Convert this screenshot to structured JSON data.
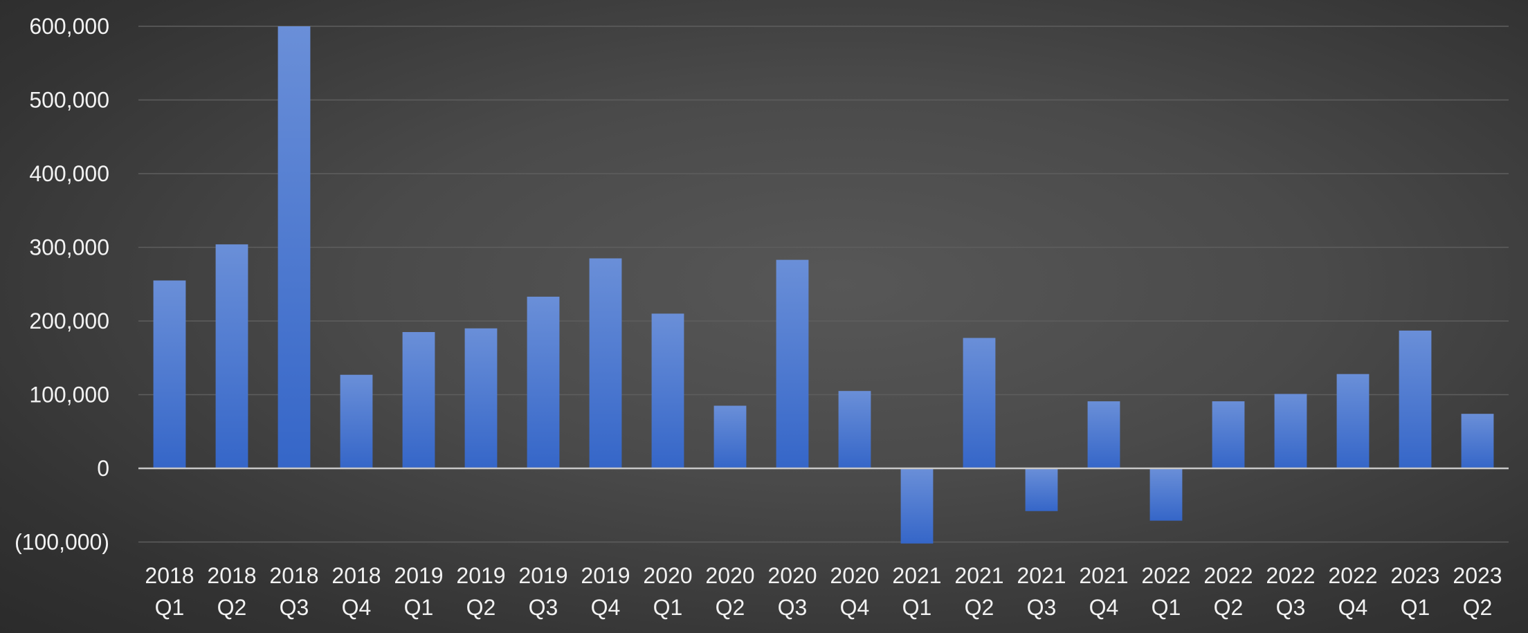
{
  "chart_data": {
    "type": "bar",
    "categories": [
      [
        "2018",
        "Q1"
      ],
      [
        "2018",
        "Q2"
      ],
      [
        "2018",
        "Q3"
      ],
      [
        "2018",
        "Q4"
      ],
      [
        "2019",
        "Q1"
      ],
      [
        "2019",
        "Q2"
      ],
      [
        "2019",
        "Q3"
      ],
      [
        "2019",
        "Q4"
      ],
      [
        "2020",
        "Q1"
      ],
      [
        "2020",
        "Q2"
      ],
      [
        "2020",
        "Q3"
      ],
      [
        "2020",
        "Q4"
      ],
      [
        "2021",
        "Q1"
      ],
      [
        "2021",
        "Q2"
      ],
      [
        "2021",
        "Q3"
      ],
      [
        "2021",
        "Q4"
      ],
      [
        "2022",
        "Q1"
      ],
      [
        "2022",
        "Q2"
      ],
      [
        "2022",
        "Q3"
      ],
      [
        "2022",
        "Q4"
      ],
      [
        "2023",
        "Q1"
      ],
      [
        "2023",
        "Q2"
      ]
    ],
    "values": [
      255000,
      304000,
      600000,
      127000,
      185000,
      190000,
      233000,
      285000,
      210000,
      85000,
      283000,
      105000,
      -102000,
      177000,
      -58000,
      91000,
      -71000,
      91000,
      101000,
      128000,
      187000,
      74000
    ],
    "ylim": [
      -100000,
      600000
    ],
    "yticks": [
      {
        "value": 600000,
        "label": "600,000"
      },
      {
        "value": 500000,
        "label": "500,000"
      },
      {
        "value": 400000,
        "label": "400,000"
      },
      {
        "value": 300000,
        "label": "300,000"
      },
      {
        "value": 200000,
        "label": "200,000"
      },
      {
        "value": 100000,
        "label": "100,000"
      },
      {
        "value": 0,
        "label": "0"
      },
      {
        "value": -100000,
        "label": "(100,000)"
      }
    ],
    "title": "",
    "xlabel": "",
    "ylabel": "",
    "grid": true,
    "legend": "none",
    "colors": {
      "bar_top": "#6a8fd8",
      "bar_bottom": "#3566c8",
      "gridline": "#5e5e5e",
      "zero_line": "#c8c8c8",
      "tick_text": "#f2f2f2",
      "negative_tick_text": "#e01010"
    }
  }
}
